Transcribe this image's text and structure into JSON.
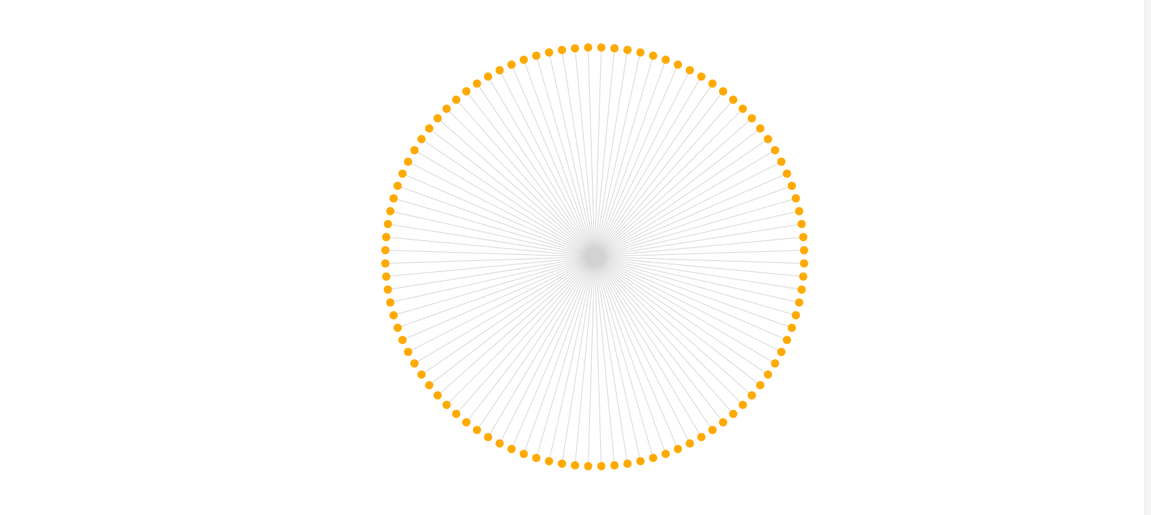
{
  "diagram": {
    "type": "radial-network",
    "node_count": 100,
    "spoke_color": "#d4d4d4",
    "node_color": "#ffaa00",
    "background": "#ffffff"
  }
}
